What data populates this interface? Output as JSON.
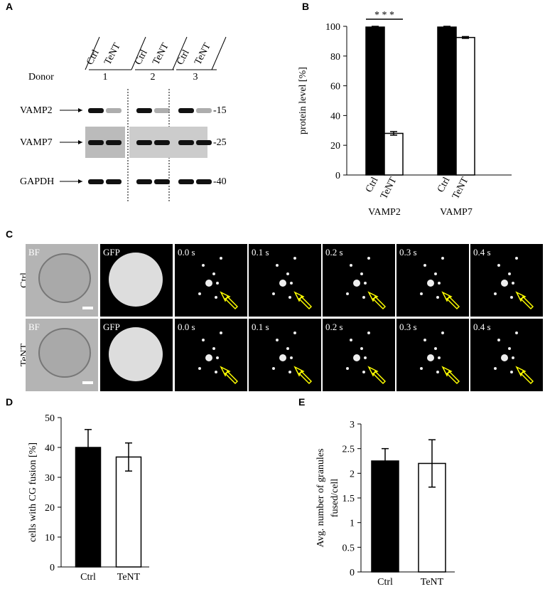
{
  "panel_labels": [
    "A",
    "B",
    "C",
    "D",
    "E"
  ],
  "blot": {
    "lanes": [
      "Ctrl",
      "TeNT",
      "Ctrl",
      "TeNT",
      "Ctrl",
      "TeNT"
    ],
    "donor_label": "Donor",
    "donors": [
      "1",
      "2",
      "3"
    ],
    "rows": [
      {
        "label": "VAMP2",
        "marker": "-15"
      },
      {
        "label": "VAMP7",
        "marker": "-25"
      },
      {
        "label": "GAPDH",
        "marker": "-40"
      }
    ]
  },
  "microscopy": {
    "rows": [
      {
        "label": "Ctrl",
        "frames": [
          "BF",
          "GFP",
          "0.0 s",
          "0.1 s",
          "0.2 s",
          "0.3 s",
          "0.4 s"
        ]
      },
      {
        "label": "TeNT",
        "frames": [
          "BF",
          "GFP",
          "0.0 s",
          "0.1 s",
          "0.2 s",
          "0.3 s",
          "0.4 s"
        ]
      }
    ]
  },
  "chart_data": [
    {
      "type": "bar",
      "ylabel": "protein level [%]",
      "categories": [
        "VAMP2",
        "VAMP7"
      ],
      "series": [
        {
          "name": "Ctrl",
          "color": "#000000",
          "values": [
            99.5,
            99.5
          ],
          "errors": [
            0.5,
            0.5
          ]
        },
        {
          "name": "TeNT",
          "color": "#ffffff",
          "values": [
            28,
            92.5
          ],
          "errors": [
            1.2,
            0.6
          ]
        }
      ],
      "annotation": "* * *",
      "ylim": [
        0,
        100
      ],
      "yticks": [
        0,
        20,
        40,
        60,
        80,
        100
      ]
    },
    {
      "type": "bar",
      "ylabel": "cells with CG fusion [%]",
      "categories": [
        "Ctrl",
        "TeNT"
      ],
      "values": [
        40,
        36.8
      ],
      "errors": [
        6,
        4.7
      ],
      "colors": [
        "#000000",
        "#ffffff"
      ],
      "ylim": [
        0,
        50
      ],
      "yticks": [
        0,
        10,
        20,
        30,
        40,
        50
      ]
    },
    {
      "type": "bar",
      "ylabel": [
        "Avg. number of granules",
        "fused/cell"
      ],
      "categories": [
        "Ctrl",
        "TeNT"
      ],
      "values": [
        2.25,
        2.2
      ],
      "errors": [
        0.25,
        0.48
      ],
      "colors": [
        "#000000",
        "#ffffff"
      ],
      "ylim": [
        0,
        3
      ],
      "yticks": [
        0,
        0.5,
        1,
        1.5,
        2,
        2.5,
        3
      ]
    }
  ]
}
